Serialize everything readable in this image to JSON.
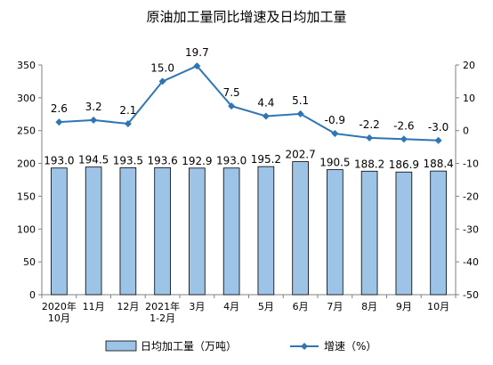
{
  "chart_data": {
    "type": "bar+line",
    "title": "原油加工量同比增速及日均加工量",
    "categories": [
      "2020年\n10月",
      "11月",
      "12月",
      "2021年\n1-2月",
      "3月",
      "4月",
      "5月",
      "6月",
      "7月",
      "8月",
      "9月",
      "10月"
    ],
    "series": [
      {
        "name": "日均加工量（万吨）",
        "type": "bar",
        "axis": "left",
        "values": [
          193.0,
          194.5,
          193.5,
          193.6,
          192.9,
          193.0,
          195.2,
          202.7,
          190.5,
          188.2,
          186.9,
          188.4
        ],
        "labels": [
          "193.0",
          "194.5",
          "193.5",
          "193.6",
          "192.9",
          "193.0",
          "195.2",
          "202.7",
          "190.5",
          "188.2",
          "186.9",
          "188.4"
        ],
        "color": "#9DC3E6",
        "border": "#000000"
      },
      {
        "name": "增速（%）",
        "type": "line",
        "axis": "right",
        "values": [
          2.6,
          3.2,
          2.1,
          15.0,
          19.7,
          7.5,
          4.4,
          5.1,
          -0.9,
          -2.2,
          -2.6,
          -3.0
        ],
        "labels": [
          "2.6",
          "3.2",
          "2.1",
          "15.0",
          "19.7",
          "7.5",
          "4.4",
          "5.1",
          "-0.9",
          "-2.2",
          "-2.6",
          "-3.0"
        ],
        "color": "#2E75B6"
      }
    ],
    "y_left": {
      "min": 0,
      "max": 350,
      "ticks": [
        "0",
        "50",
        "100",
        "150",
        "200",
        "250",
        "300",
        "350"
      ]
    },
    "y_right": {
      "min": -50,
      "max": 20,
      "ticks": [
        "-50",
        "-40",
        "-30",
        "-20",
        "-10",
        "0",
        "10",
        "20"
      ]
    },
    "grid": false,
    "legend_position": "bottom"
  }
}
